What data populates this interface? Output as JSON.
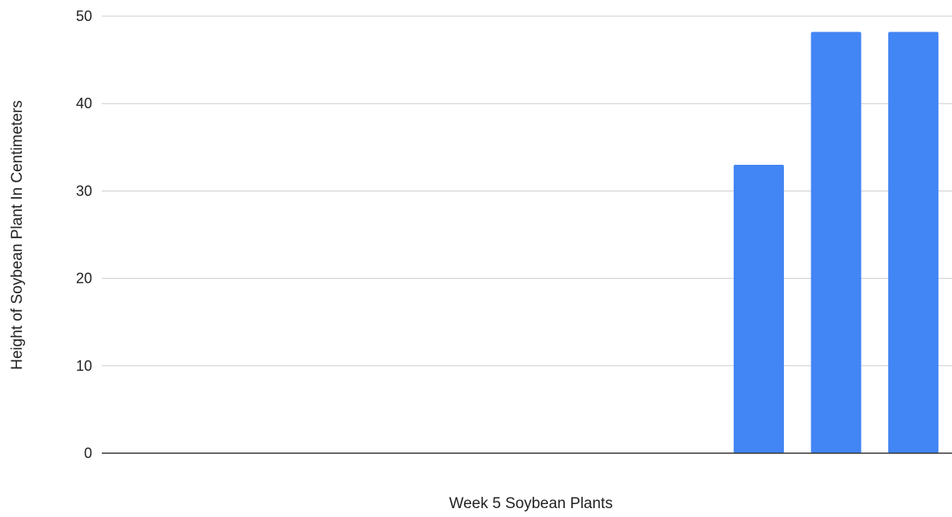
{
  "chart_data": {
    "type": "bar",
    "title": "",
    "xlabel": "Week 5 Soybean Plants",
    "ylabel": "Height of Soybean Plant In Centimeters",
    "categories": [
      "",
      "",
      "",
      "",
      "",
      "",
      "",
      "",
      "",
      "",
      ""
    ],
    "values": [
      null,
      null,
      null,
      null,
      null,
      null,
      null,
      null,
      33,
      48.2,
      48.2
    ],
    "ylim": [
      0,
      50
    ],
    "yticks": [
      0,
      10,
      20,
      30,
      40,
      50
    ],
    "grid": true,
    "legend": "none",
    "colors": {
      "bar": "#4285f4",
      "grid": "#cccccc",
      "baseline": "#333333",
      "text": "#222222"
    }
  }
}
